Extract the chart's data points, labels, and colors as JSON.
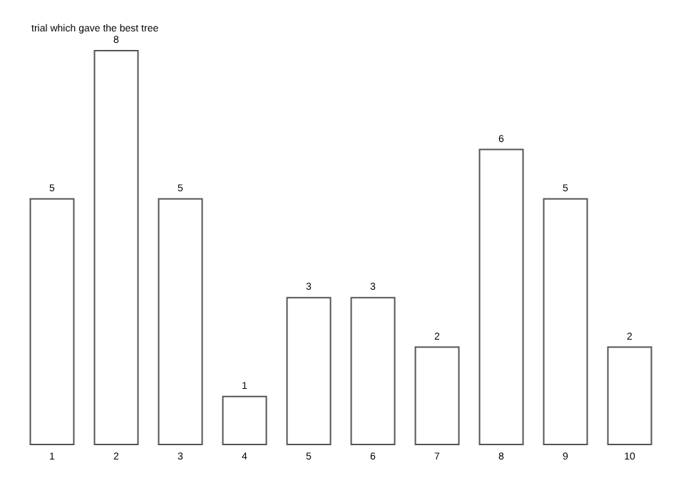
{
  "chart_data": {
    "type": "bar",
    "title": "trial which gave the best tree",
    "categories": [
      "1",
      "2",
      "3",
      "4",
      "5",
      "6",
      "7",
      "8",
      "9",
      "10"
    ],
    "values": [
      5,
      8,
      5,
      1,
      3,
      3,
      2,
      6,
      5,
      2
    ],
    "color": "#ffffff",
    "data_labels": true
  }
}
